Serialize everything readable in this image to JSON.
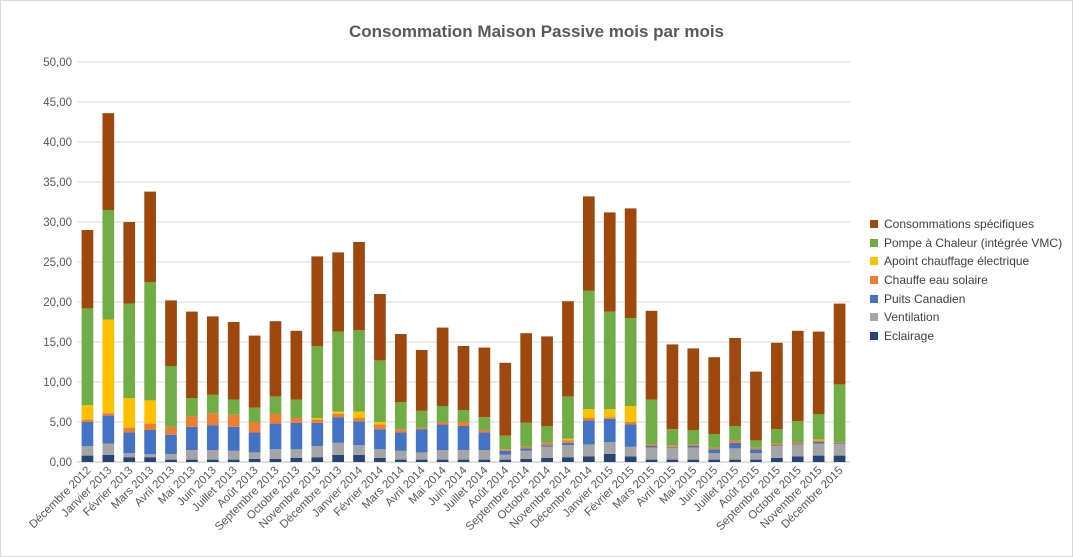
{
  "chart_data": {
    "type": "bar",
    "stacked": true,
    "title": "Consommation Maison Passive mois par mois",
    "xlabel": "",
    "ylabel": "",
    "ylim": [
      0,
      50
    ],
    "yticks": [
      "0,00",
      "5,00",
      "10,00",
      "15,00",
      "20,00",
      "25,00",
      "30,00",
      "35,00",
      "40,00",
      "45,00",
      "50,00"
    ],
    "grid": true,
    "legend_position": "right",
    "categories": [
      "Décembre 2012",
      "Janvier 2013",
      "Février 2013",
      "Mars 2013",
      "Avril 2013",
      "Mai 2013",
      "Juin 2013",
      "Juillet 2013",
      "Août 2013",
      "Septembre 2013",
      "Octobre 2013",
      "Novembre 2013",
      "Décembre 2013",
      "Janvier 2014",
      "Février 2014",
      "Mars 2014",
      "Avril 2014",
      "Mai 2014",
      "Juin 2014",
      "Juillet 2014",
      "Août 2014",
      "Septembre 2014",
      "Octobre 2014",
      "Novembre 2014",
      "Décembre 2014",
      "Janvier 2015",
      "Février 2015",
      "Mars 2015",
      "Avril 2015",
      "Mai 2015",
      "Juin 2015",
      "Juillet 2015",
      "Août 2015",
      "Septembre 2015",
      "Octobre 2015",
      "Novembre 2015",
      "Décembre 2015"
    ],
    "series": [
      {
        "name": "Eclairage",
        "color": "#264478",
        "values": [
          0.8,
          0.9,
          0.6,
          0.6,
          0.3,
          0.3,
          0.3,
          0.3,
          0.4,
          0.4,
          0.5,
          0.6,
          0.9,
          0.9,
          0.5,
          0.3,
          0.3,
          0.3,
          0.3,
          0.3,
          0.3,
          0.4,
          0.5,
          0.6,
          0.7,
          1.0,
          0.7,
          0.3,
          0.3,
          0.3,
          0.3,
          0.3,
          0.3,
          0.5,
          0.7,
          0.8,
          0.8
        ]
      },
      {
        "name": "Ventilation",
        "color": "#a5a5a5",
        "values": [
          1.2,
          1.4,
          0.5,
          0.4,
          0.7,
          1.2,
          1.2,
          1.1,
          0.8,
          1.2,
          1.1,
          1.4,
          1.5,
          1.2,
          1.1,
          1.1,
          0.9,
          1.2,
          1.2,
          1.2,
          0.6,
          1.0,
          1.4,
          1.5,
          1.5,
          1.5,
          1.2,
          1.5,
          1.5,
          1.5,
          0.8,
          1.4,
          0.8,
          1.5,
          1.5,
          1.5,
          1.5
        ]
      },
      {
        "name": "Puits Canadien",
        "color": "#4472c4",
        "values": [
          3.0,
          3.5,
          2.6,
          3.0,
          2.4,
          2.9,
          3.1,
          3.0,
          2.5,
          3.2,
          3.3,
          2.9,
          3.2,
          3.0,
          2.5,
          2.3,
          2.9,
          3.2,
          3.0,
          2.2,
          0.5,
          0.3,
          0.2,
          0.3,
          3.0,
          2.9,
          2.8,
          0.2,
          0.1,
          0.2,
          0.5,
          0.7,
          0.5,
          0.1,
          0.1,
          0.2,
          0.1
        ]
      },
      {
        "name": "Chauffe eau solaire",
        "color": "#ed7d31",
        "values": [
          0.3,
          0.3,
          0.6,
          0.8,
          1.0,
          1.3,
          1.5,
          1.5,
          1.3,
          1.2,
          0.6,
          0.4,
          0.4,
          0.4,
          0.6,
          0.4,
          0.2,
          0.3,
          0.5,
          0.3,
          0.2,
          0.2,
          0.3,
          0.3,
          0.3,
          0.2,
          0.3,
          0.2,
          0.2,
          0.2,
          0.2,
          0.3,
          0.2,
          0.2,
          0.2,
          0.2,
          0.1
        ]
      },
      {
        "name": "Apoint chauffage électrique",
        "color": "#ffc000",
        "values": [
          1.8,
          11.7,
          3.7,
          2.9,
          0.0,
          0.0,
          0.0,
          0.0,
          0.0,
          0.0,
          0.0,
          0.2,
          0.3,
          0.8,
          0.3,
          0.0,
          0.0,
          0.0,
          0.0,
          0.0,
          0.0,
          0.0,
          0.0,
          0.2,
          1.1,
          1.0,
          2.0,
          0.0,
          0.0,
          0.0,
          0.0,
          0.0,
          0.0,
          0.0,
          0.0,
          0.1,
          0.0
        ]
      },
      {
        "name": "Pompe à Chaleur (intégrée VMC)",
        "color": "#70ad47",
        "values": [
          12.1,
          13.7,
          11.8,
          14.8,
          7.6,
          2.3,
          2.3,
          1.9,
          1.8,
          2.2,
          2.3,
          9.0,
          10.0,
          10.2,
          7.7,
          3.4,
          2.1,
          2.0,
          1.5,
          1.6,
          1.7,
          3.0,
          2.1,
          5.3,
          14.8,
          12.2,
          11.0,
          5.6,
          2.0,
          1.8,
          1.7,
          1.8,
          0.9,
          1.8,
          2.6,
          3.2,
          7.2
        ]
      },
      {
        "name": "Consommations spécifiques",
        "color": "#9e480e",
        "values": [
          9.8,
          12.1,
          10.2,
          11.3,
          8.2,
          10.8,
          9.8,
          9.7,
          9.0,
          9.4,
          8.6,
          11.2,
          9.9,
          11.0,
          8.3,
          8.5,
          7.6,
          9.8,
          8.0,
          8.7,
          9.1,
          11.2,
          11.2,
          11.9,
          11.8,
          12.4,
          13.7,
          11.1,
          10.6,
          10.2,
          9.6,
          11.0,
          8.6,
          10.8,
          11.3,
          10.3,
          10.1
        ]
      }
    ]
  }
}
